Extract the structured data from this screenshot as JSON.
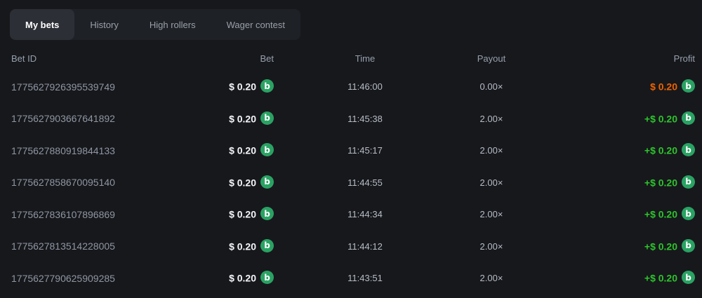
{
  "tabs": [
    {
      "label": "My bets",
      "active": true
    },
    {
      "label": "History",
      "active": false
    },
    {
      "label": "High rollers",
      "active": false
    },
    {
      "label": "Wager contest",
      "active": false
    }
  ],
  "coin": {
    "name": "coin-icon",
    "glyph": "b",
    "color": "#2aa263"
  },
  "colors": {
    "win": "#2dc42d",
    "loss": "#ed6300"
  },
  "table": {
    "columns": [
      "Bet ID",
      "Bet",
      "Time",
      "Payout",
      "Profit"
    ],
    "rows": [
      {
        "id": "1775627926395539749",
        "bet": "$ 0.20",
        "time": "11:46:00",
        "payout": "0.00×",
        "profit": "$ 0.20",
        "win": false
      },
      {
        "id": "1775627903667641892",
        "bet": "$ 0.20",
        "time": "11:45:38",
        "payout": "2.00×",
        "profit": "+$ 0.20",
        "win": true
      },
      {
        "id": "1775627880919844133",
        "bet": "$ 0.20",
        "time": "11:45:17",
        "payout": "2.00×",
        "profit": "+$ 0.20",
        "win": true
      },
      {
        "id": "1775627858670095140",
        "bet": "$ 0.20",
        "time": "11:44:55",
        "payout": "2.00×",
        "profit": "+$ 0.20",
        "win": true
      },
      {
        "id": "1775627836107896869",
        "bet": "$ 0.20",
        "time": "11:44:34",
        "payout": "2.00×",
        "profit": "+$ 0.20",
        "win": true
      },
      {
        "id": "1775627813514228005",
        "bet": "$ 0.20",
        "time": "11:44:12",
        "payout": "2.00×",
        "profit": "+$ 0.20",
        "win": true
      },
      {
        "id": "1775627790625909285",
        "bet": "$ 0.20",
        "time": "11:43:51",
        "payout": "2.00×",
        "profit": "+$ 0.20",
        "win": true
      }
    ]
  }
}
